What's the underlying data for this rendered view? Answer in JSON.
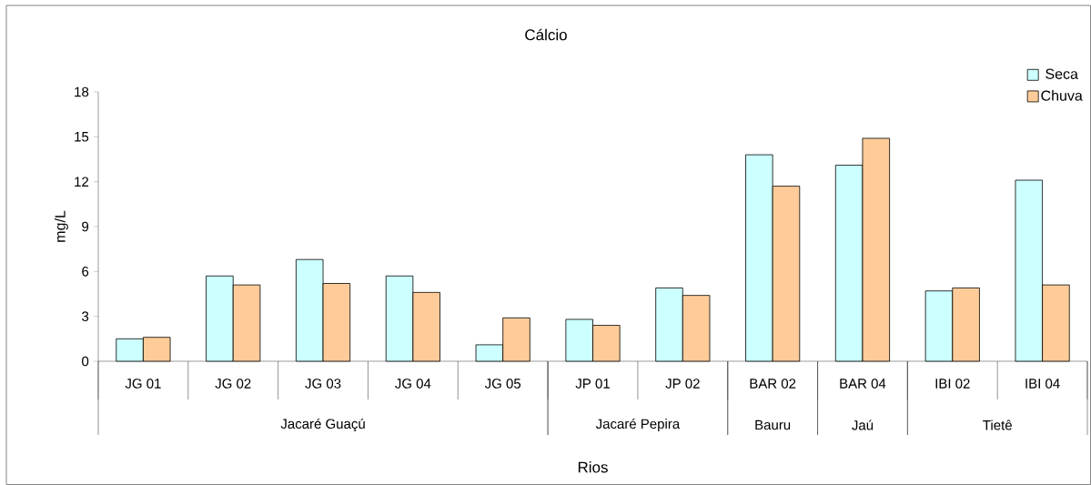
{
  "chart_data": {
    "type": "bar",
    "title": "Cálcio",
    "xlabel": "Rios",
    "ylabel": "mg/L",
    "categories": [
      "JG 01",
      "JG 02",
      "JG 03",
      "JG 04",
      "JG 05",
      "JP 01",
      "JP 02",
      "BAR 02",
      "BAR 04",
      "IBI 02",
      "IBI 04"
    ],
    "series": [
      {
        "name": "Seca",
        "color": "#ccffff",
        "values": [
          1.5,
          5.7,
          6.8,
          5.7,
          1.1,
          2.8,
          4.9,
          13.8,
          13.1,
          4.7,
          12.1
        ]
      },
      {
        "name": "Chuva",
        "color": "#ffcc99",
        "values": [
          1.6,
          5.1,
          5.2,
          4.6,
          2.9,
          2.4,
          4.4,
          11.7,
          14.9,
          4.9,
          5.1
        ]
      }
    ],
    "annotations": [
      "Jacaré Guaçú",
      "Jacaré Pepira",
      "Bauru",
      "Jaú",
      "Tietê"
    ],
    "ylim": [
      0,
      18
    ],
    "yticks": [
      0,
      3,
      6,
      9,
      12,
      15,
      18
    ],
    "grid": false,
    "legend": "top right"
  }
}
